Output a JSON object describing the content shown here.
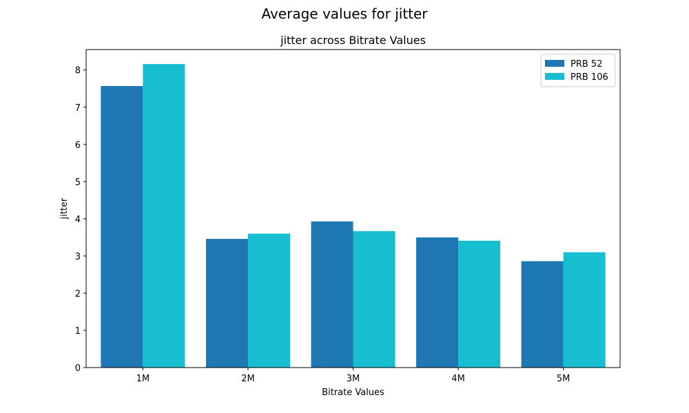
{
  "figure_title": "Average values for jitter",
  "chart_data": {
    "type": "bar",
    "title": "jitter across Bitrate Values",
    "xlabel": "Bitrate Values",
    "ylabel": "jitter",
    "categories": [
      "1M",
      "2M",
      "3M",
      "4M",
      "5M"
    ],
    "ylim": [
      0,
      8.55
    ],
    "yticks": [
      0,
      1,
      2,
      3,
      4,
      5,
      6,
      7,
      8
    ],
    "grid": false,
    "legend_position": "upper right",
    "series": [
      {
        "name": "PRB 52",
        "color": "#1f77b4",
        "values": [
          7.57,
          3.46,
          3.93,
          3.5,
          2.86
        ]
      },
      {
        "name": "PRB 106",
        "color": "#17becf",
        "values": [
          8.16,
          3.6,
          3.67,
          3.41,
          3.1
        ]
      }
    ]
  }
}
